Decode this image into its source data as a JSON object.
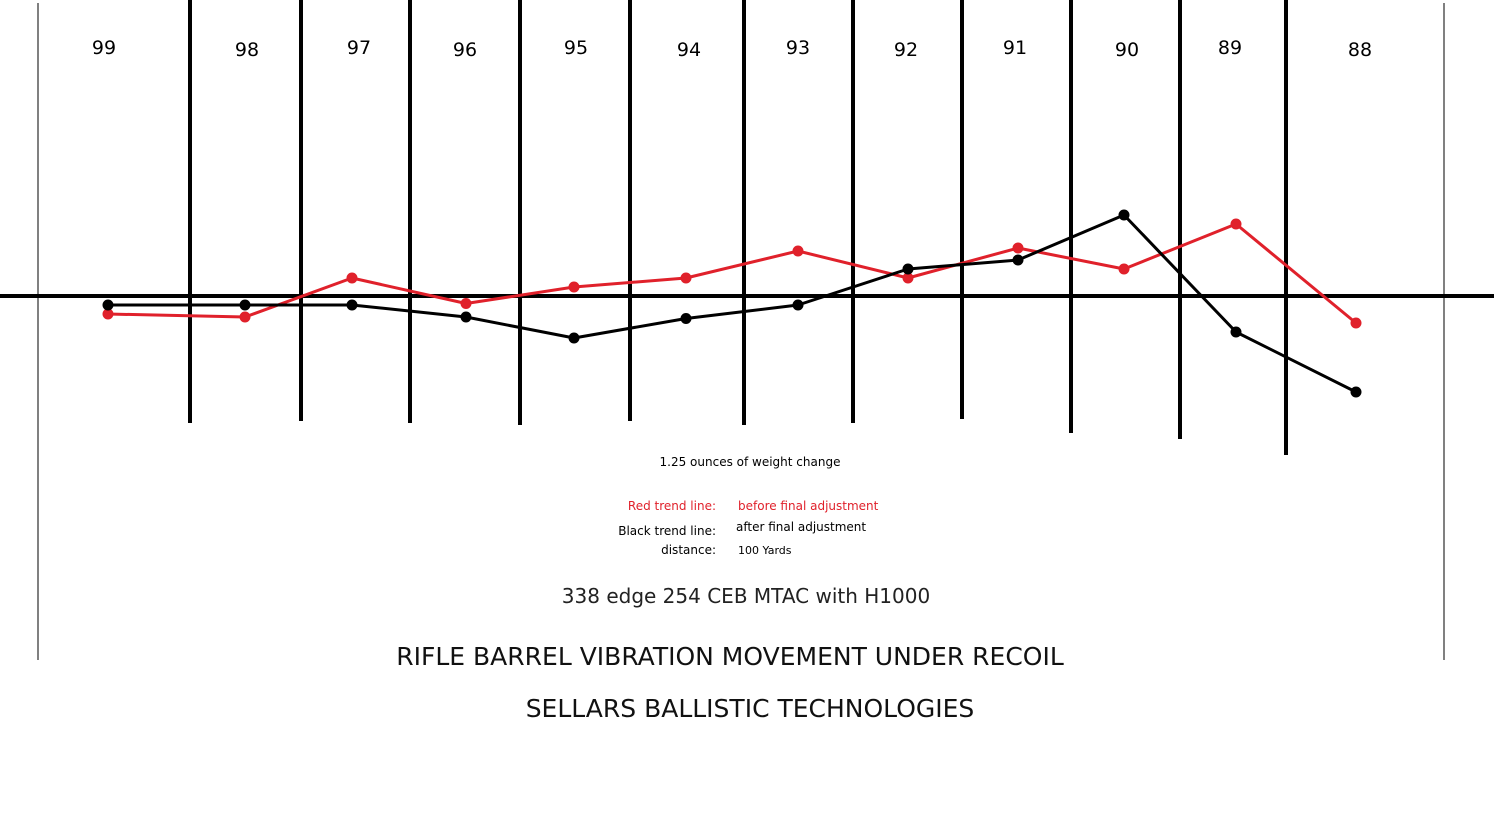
{
  "chart_data": {
    "type": "line",
    "categories": [
      "99",
      "98",
      "97",
      "96",
      "95",
      "94",
      "93",
      "92",
      "91",
      "90",
      "89",
      "88"
    ],
    "series": [
      {
        "name": "Red trend line",
        "color": "#e0212b",
        "values": [
          -0.6,
          -0.7,
          0.6,
          -0.25,
          0.3,
          0.6,
          1.5,
          0.6,
          1.6,
          0.9,
          2.4,
          -0.9
        ]
      },
      {
        "name": "Black trend line",
        "color": "#000000",
        "values": [
          -0.3,
          -0.3,
          -0.3,
          -0.7,
          -1.4,
          -0.75,
          -0.3,
          0.9,
          1.2,
          2.7,
          -1.2,
          -3.2
        ]
      }
    ],
    "ylim": [
      -4,
      7
    ],
    "zero_line": true,
    "title": "RIFLE BARREL VIBRATION MOVEMENT UNDER RECOIL",
    "subtitle": "338 edge  254 CEB MTAC  with H1000",
    "xlabel": "",
    "ylabel": ""
  },
  "annotations": {
    "weight_note": "1.25 ounces of weight change",
    "red_label": "Red trend line:",
    "red_value": "before final adjustment",
    "black_label": "Black  trend line:",
    "black_value": "after final adjustment",
    "distance_label": "distance:",
    "distance_value": "100 Yards",
    "company": "SELLARS BALLISTIC TECHNOLOGIES"
  }
}
